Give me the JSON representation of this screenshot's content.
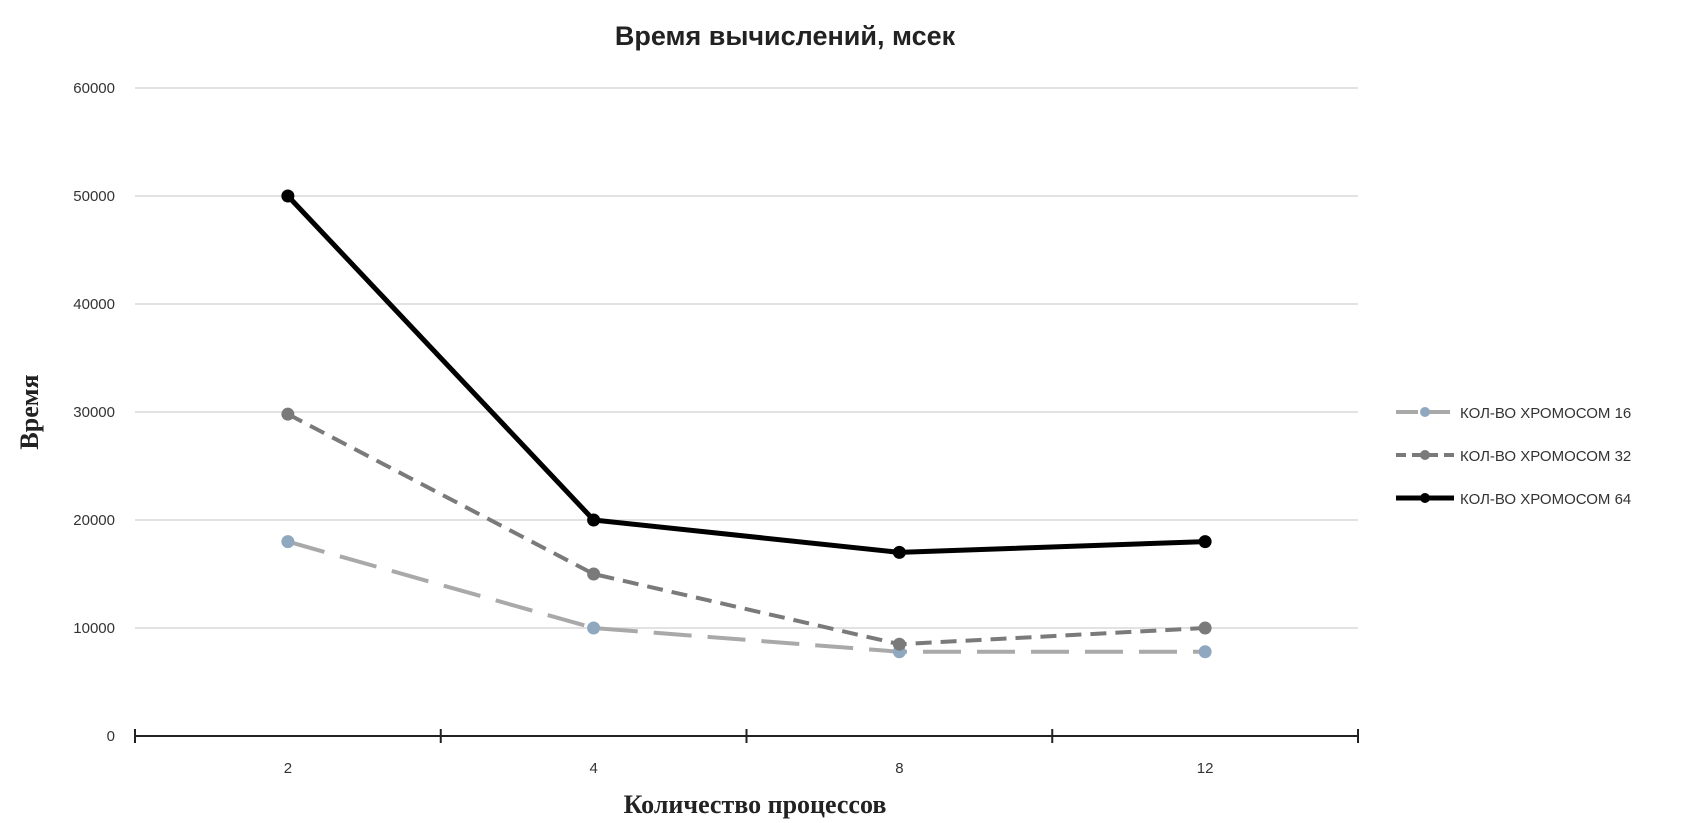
{
  "chart_data": {
    "type": "line",
    "title": "Время вычислений, мсек",
    "xlabel": "Количество процессов",
    "ylabel": "Время",
    "categories": [
      "2",
      "4",
      "8",
      "12"
    ],
    "ylim": [
      0,
      60000
    ],
    "yticks": [
      "0",
      "10000",
      "20000",
      "30000",
      "40000",
      "50000",
      "60000"
    ],
    "grid": true,
    "legend_position": "right",
    "series": [
      {
        "name": "КОЛ-ВО ХРОМОСОМ 16",
        "values": [
          18000,
          10000,
          7800,
          7800
        ],
        "color": "#a9a9a9",
        "marker_color": "#8fa8c0",
        "style": "long-dash"
      },
      {
        "name": "КОЛ-ВО ХРОМОСОМ 32",
        "values": [
          29800,
          15000,
          8500,
          10000
        ],
        "color": "#7a7a7a",
        "marker_color": "#7a7a7a",
        "style": "dash"
      },
      {
        "name": "КОЛ-ВО ХРОМОСОМ 64",
        "values": [
          50000,
          20000,
          17000,
          18000
        ],
        "color": "#000000",
        "marker_color": "#000000",
        "style": "solid"
      }
    ]
  }
}
